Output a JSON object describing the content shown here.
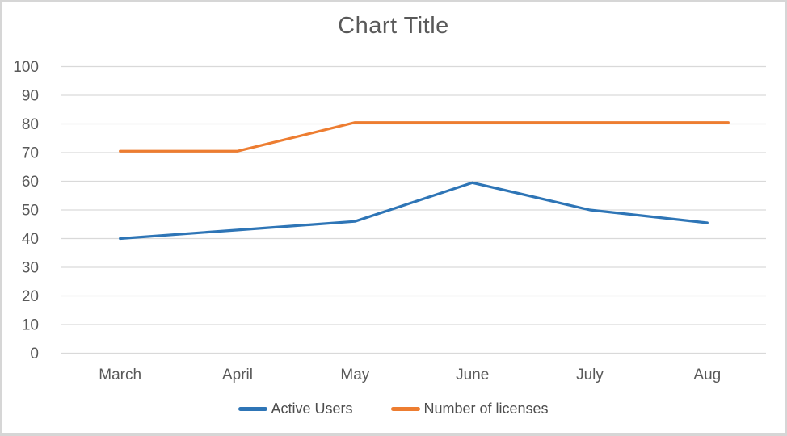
{
  "chart_data": {
    "type": "line",
    "title": "Chart Title",
    "categories": [
      "March",
      "April",
      "May",
      "June",
      "July",
      "Aug"
    ],
    "series": [
      {
        "name": "Active Users",
        "color": "#2E75B6",
        "values": [
          40,
          43,
          46,
          59.5,
          50,
          45.5
        ]
      },
      {
        "name": "Number of licenses",
        "color": "#ED7D31",
        "values": [
          70.5,
          70.5,
          80.5,
          80.5,
          80.5,
          80.5
        ],
        "extends_past_last_point": true
      }
    ],
    "y_axis": {
      "min": 0,
      "max": 100,
      "step": 10,
      "tick_labels_top_down": [
        "100",
        "90",
        "80",
        "70",
        "60",
        "50",
        "40",
        "30",
        "20",
        "10",
        "0"
      ]
    },
    "grid": true,
    "legend_position": "bottom",
    "colors": {
      "grid": "#D9D9D9",
      "axis_text": "#595959",
      "title_text": "#595959",
      "legend_text": "#4D4D4D",
      "border": "#D6D6D6",
      "background": "#FFFFFF"
    }
  }
}
